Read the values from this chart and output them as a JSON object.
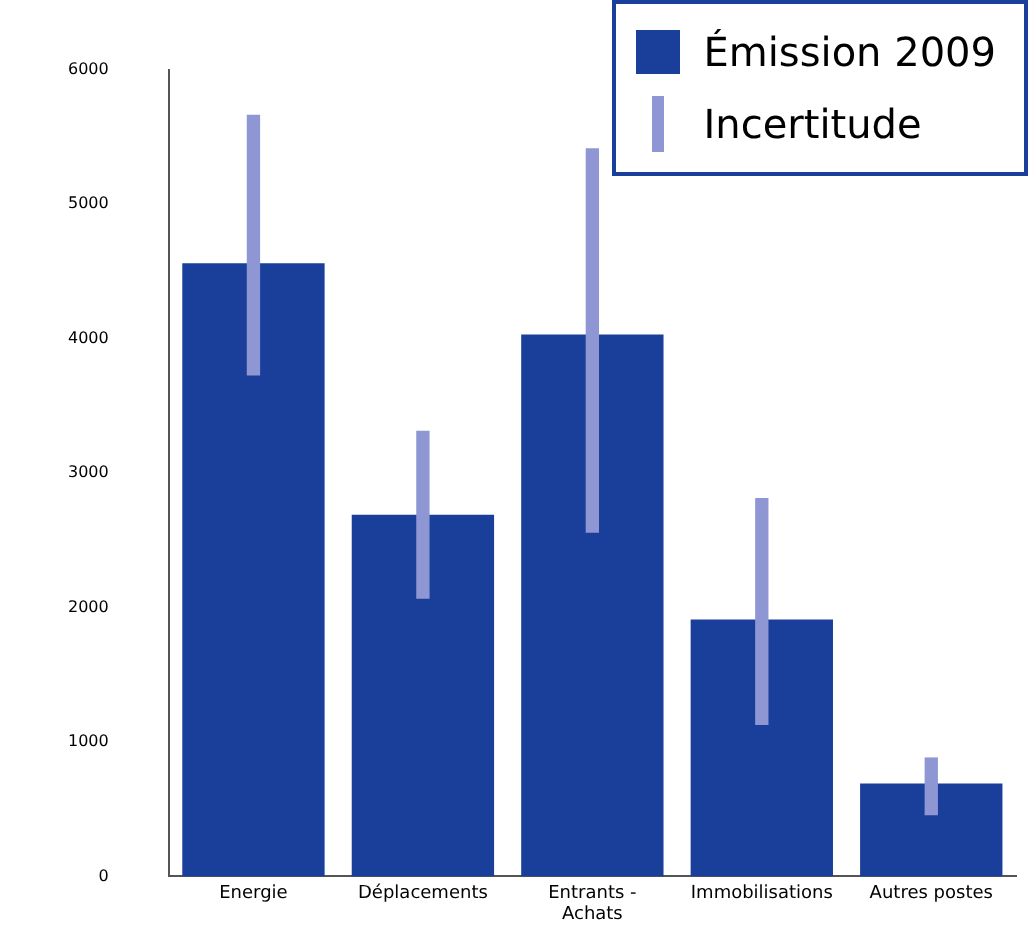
{
  "chart_data": {
    "type": "bar",
    "categories": [
      "Energie",
      "Déplacements",
      "Entrants - Achats",
      "Immobilisations",
      "Autres postes"
    ],
    "series": [
      {
        "name": "Émission 2009",
        "color": "#1a3f9a",
        "values": [
          4560,
          2690,
          4030,
          1910,
          690
        ]
      },
      {
        "name": "Incertitude",
        "color": "#8f96d4",
        "base": [
          3730,
          2070,
          2560,
          1130,
          460
        ],
        "values": [
          1930,
          1240,
          2850,
          1680,
          420
        ]
      }
    ],
    "ylim": [
      0,
      6000
    ],
    "yticks": [
      0,
      1000,
      2000,
      3000,
      4000,
      5000,
      6000
    ],
    "grid": false,
    "legend": "top right"
  }
}
